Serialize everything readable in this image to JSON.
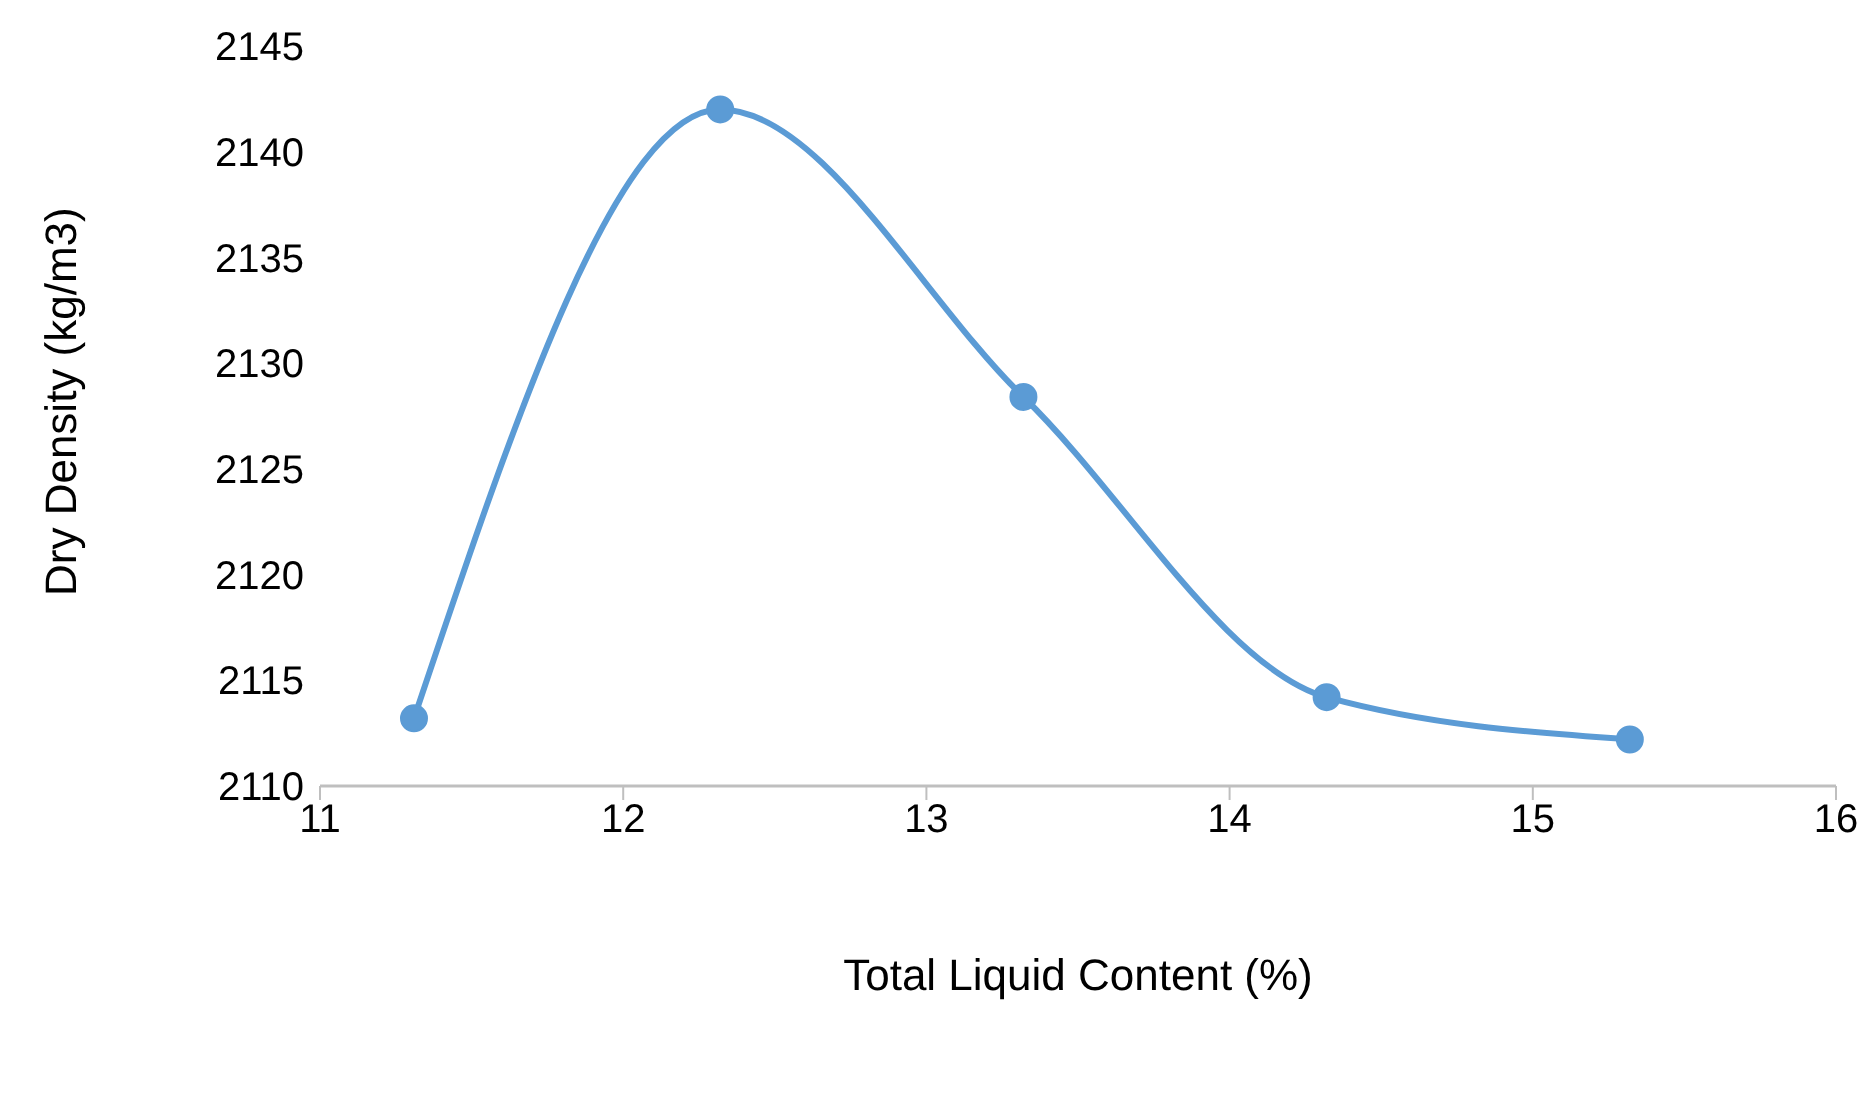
{
  "chart_data": {
    "type": "line",
    "xlabel": "Total Liquid Content (%)",
    "ylabel": "Dry Density (kg/m3)",
    "x": [
      11.31,
      12.32,
      13.32,
      14.32,
      15.32
    ],
    "series": [
      {
        "color": "#5b9bd5",
        "values": [
          2113.2,
          2142.0,
          2128.4,
          2114.2,
          2112.2
        ]
      }
    ],
    "xlim": [
      11,
      16
    ],
    "xticks": [
      11,
      12,
      13,
      14,
      15,
      16
    ],
    "ylim": [
      2110,
      2145
    ],
    "yticks": [
      2110,
      2115,
      2120,
      2125,
      2130,
      2135,
      2140,
      2145
    ],
    "grid": false,
    "legend": false,
    "marker": "circle",
    "line_style": "solid"
  }
}
